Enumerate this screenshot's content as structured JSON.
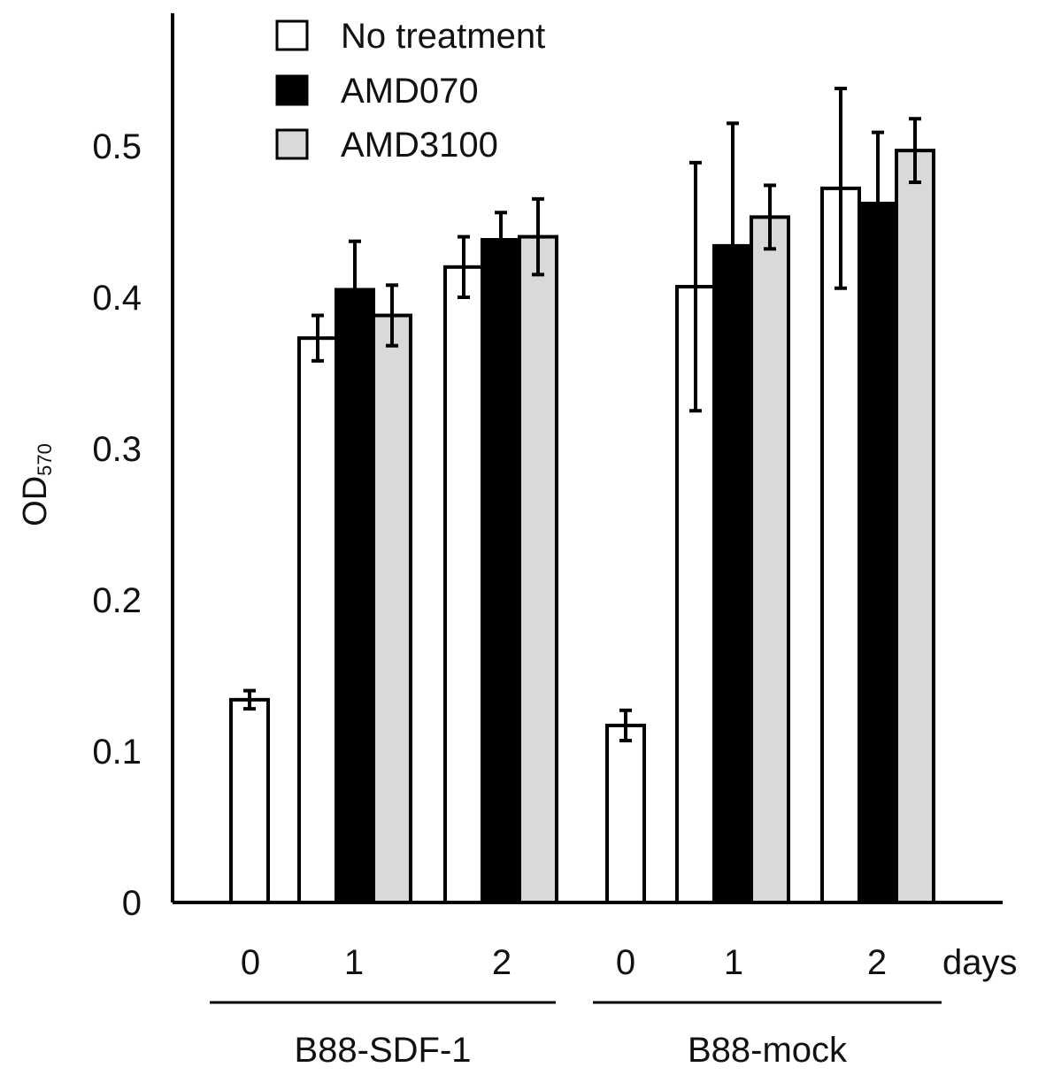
{
  "chart_data": {
    "type": "bar",
    "ylabel": {
      "main": "OD",
      "sub": "570"
    },
    "ylim": [
      0,
      0.6
    ],
    "yticks": [
      {
        "value": 0,
        "label": "0"
      },
      {
        "value": 0.1,
        "label": "0.1"
      },
      {
        "value": 0.2,
        "label": "0.2"
      },
      {
        "value": 0.3,
        "label": "0.3"
      },
      {
        "value": 0.4,
        "label": "0.4"
      },
      {
        "value": 0.5,
        "label": "0.5"
      }
    ],
    "x_unit_label": "days",
    "series": [
      {
        "name": "No treatment",
        "fill": "#ffffff"
      },
      {
        "name": "AMD070",
        "fill": "#000000"
      },
      {
        "name": "AMD3100",
        "fill": "#d9d9d9"
      }
    ],
    "groups": [
      {
        "label": "B88-SDF-1",
        "days": [
          {
            "day": "0",
            "bars": [
              {
                "series": 0,
                "value": 0.134,
                "err": 0.006
              }
            ]
          },
          {
            "day": "1",
            "bars": [
              {
                "series": 0,
                "value": 0.373,
                "err": 0.015
              },
              {
                "series": 1,
                "value": 0.405,
                "err": 0.032
              },
              {
                "series": 2,
                "value": 0.388,
                "err": 0.02
              }
            ]
          },
          {
            "day": "2",
            "bars": [
              {
                "series": 0,
                "value": 0.42,
                "err": 0.02
              },
              {
                "series": 1,
                "value": 0.438,
                "err": 0.018
              },
              {
                "series": 2,
                "value": 0.44,
                "err": 0.025
              }
            ]
          }
        ]
      },
      {
        "label": "B88-mock",
        "days": [
          {
            "day": "0",
            "bars": [
              {
                "series": 0,
                "value": 0.117,
                "err": 0.01
              }
            ]
          },
          {
            "day": "1",
            "bars": [
              {
                "series": 0,
                "value": 0.407,
                "err": 0.082
              },
              {
                "series": 1,
                "value": 0.434,
                "err": 0.081
              },
              {
                "series": 2,
                "value": 0.453,
                "err": 0.021
              }
            ]
          },
          {
            "day": "2",
            "bars": [
              {
                "series": 0,
                "value": 0.472,
                "err": 0.066
              },
              {
                "series": 1,
                "value": 0.462,
                "err": 0.047
              },
              {
                "series": 2,
                "value": 0.497,
                "err": 0.021
              }
            ]
          }
        ]
      }
    ],
    "grid": false,
    "legend_position": "top-center"
  }
}
